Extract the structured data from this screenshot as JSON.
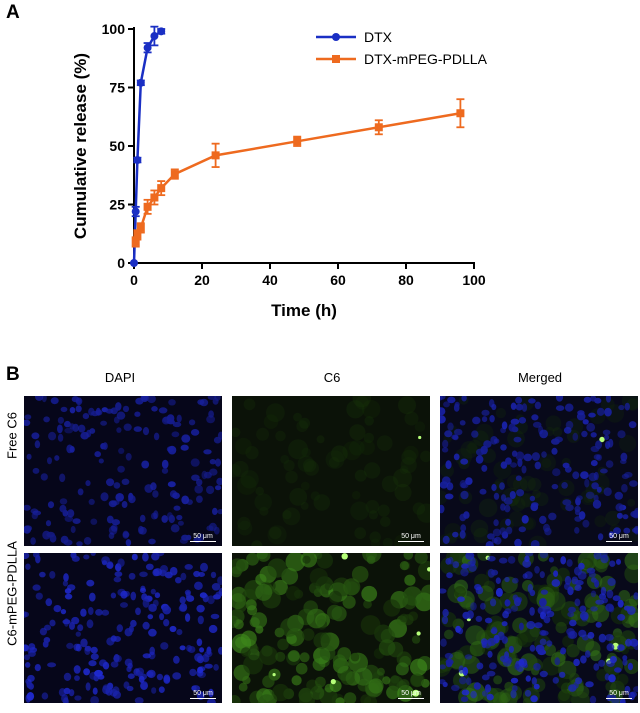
{
  "panel_a": {
    "letter": "A"
  },
  "panel_b": {
    "letter": "B",
    "columns": [
      "DAPI",
      "C6",
      "Merged"
    ],
    "rows": [
      "Free C6",
      "C6-mPEG-PDLLA"
    ],
    "scale_bar_label": "50 μm",
    "images": [
      {
        "row": 0,
        "col": 0,
        "channel": "blue",
        "green_intensity": 0.0,
        "nuclei_intensity": 0.6
      },
      {
        "row": 0,
        "col": 1,
        "channel": "green",
        "green_intensity": 0.12,
        "nuclei_intensity": 0.0
      },
      {
        "row": 0,
        "col": 2,
        "channel": "merged",
        "green_intensity": 0.08,
        "nuclei_intensity": 0.7
      },
      {
        "row": 1,
        "col": 0,
        "channel": "blue",
        "green_intensity": 0.0,
        "nuclei_intensity": 0.95
      },
      {
        "row": 1,
        "col": 1,
        "channel": "green",
        "green_intensity": 0.75,
        "nuclei_intensity": 0.0
      },
      {
        "row": 1,
        "col": 2,
        "channel": "merged",
        "green_intensity": 0.6,
        "nuclei_intensity": 0.9
      }
    ]
  },
  "chart_data": {
    "type": "line",
    "xlabel": "Time (h)",
    "ylabel": "Cumulative release (%)",
    "xlim": [
      0,
      100
    ],
    "ylim": [
      0,
      100
    ],
    "xticks": [
      0,
      20,
      40,
      60,
      80,
      100
    ],
    "yticks": [
      0,
      25,
      50,
      75,
      100
    ],
    "grid": false,
    "legend_position": "top-right",
    "series": [
      {
        "name": "DTX",
        "color": "#1a2fc4",
        "marker": "circle",
        "x": [
          0,
          0.5,
          1,
          2,
          4,
          6,
          8
        ],
        "y": [
          0,
          22,
          44,
          77,
          92,
          97,
          99
        ],
        "err": [
          0,
          2,
          1,
          1,
          2,
          4,
          1
        ]
      },
      {
        "name": "DTX-mPEG-PDLLA",
        "color": "#ee6a1f",
        "marker": "square",
        "x": [
          0.5,
          1,
          2,
          4,
          6,
          8,
          12,
          24,
          48,
          72,
          96
        ],
        "y": [
          9,
          12,
          15,
          24,
          28,
          32,
          38,
          46,
          52,
          58,
          64
        ],
        "err": [
          2,
          2,
          2,
          3,
          3,
          3,
          2,
          5,
          2,
          3,
          6
        ]
      }
    ]
  }
}
